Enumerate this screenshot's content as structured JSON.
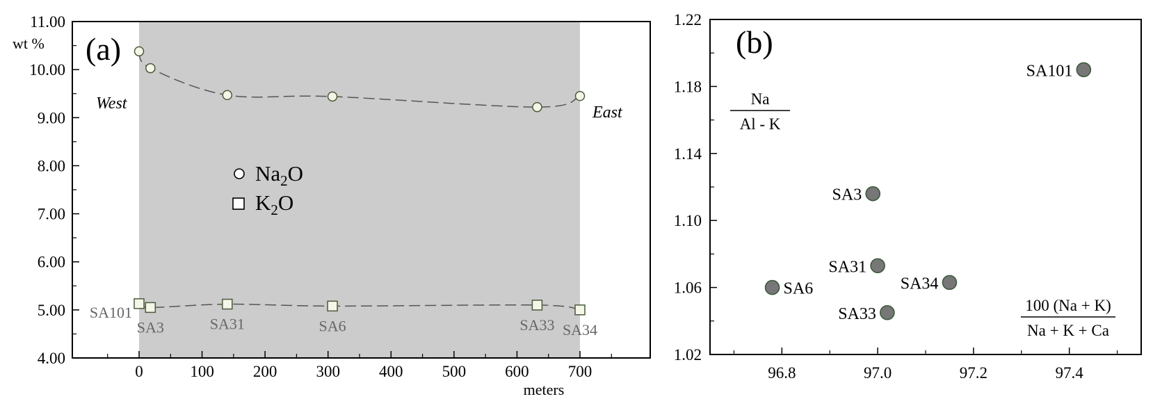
{
  "chart_data": [
    {
      "panel": "(a)",
      "type": "scatter",
      "xlabel": "meters",
      "ylabel": "wt %",
      "xlim": [
        -100,
        800
      ],
      "ylim": [
        4.0,
        11.0
      ],
      "x_ticks": [
        "0",
        "100",
        "200",
        "300",
        "400",
        "500",
        "600",
        "700"
      ],
      "y_ticks": [
        "4.00",
        "5.00",
        "6.00",
        "7.00",
        "8.00",
        "9.00",
        "10.00",
        "11.00"
      ],
      "shaded_region": [
        0,
        700
      ],
      "left_label": "West",
      "right_label": "East",
      "legend": {
        "na2o": {
          "base": "Na",
          "sub": "2",
          "tail": "O"
        },
        "k2o": {
          "base": "K",
          "sub": "2",
          "tail": "O"
        }
      },
      "series": [
        {
          "name": "Na2O",
          "marker": "circle",
          "points": [
            {
              "x": 0,
              "y": 10.38
            },
            {
              "x": 18,
              "y": 10.03
            },
            {
              "x": 140,
              "y": 9.47
            },
            {
              "x": 307,
              "y": 9.44
            },
            {
              "x": 632,
              "y": 9.22
            },
            {
              "x": 700,
              "y": 9.45
            }
          ]
        },
        {
          "name": "K2O",
          "marker": "square",
          "points": [
            {
              "x": 0,
              "y": 5.13,
              "label": "SA101"
            },
            {
              "x": 18,
              "y": 5.05,
              "label": "SA3"
            },
            {
              "x": 140,
              "y": 5.12,
              "label": "SA31"
            },
            {
              "x": 307,
              "y": 5.08,
              "label": "SA6"
            },
            {
              "x": 632,
              "y": 5.1,
              "label": "SA33"
            },
            {
              "x": 700,
              "y": 5.0,
              "label": "SA34"
            }
          ]
        }
      ]
    },
    {
      "panel": "(b)",
      "type": "scatter",
      "xlim": [
        96.65,
        97.55
      ],
      "ylim": [
        1.02,
        1.22
      ],
      "x_ticks": [
        "96.8",
        "97.0",
        "97.2",
        "97.4"
      ],
      "y_ticks": [
        "1.02",
        "1.06",
        "1.10",
        "1.14",
        "1.18",
        "1.22"
      ],
      "ylabel": {
        "numerator": "Na",
        "denominator": "Al - K"
      },
      "xlabel": {
        "numerator": "100 (Na + K)",
        "denominator": "Na + K + Ca"
      },
      "points": [
        {
          "label": "SA101",
          "x": 97.43,
          "y": 1.19
        },
        {
          "label": "SA3",
          "x": 96.99,
          "y": 1.116
        },
        {
          "label": "SA31",
          "x": 97.0,
          "y": 1.073
        },
        {
          "label": "SA34",
          "x": 97.15,
          "y": 1.063
        },
        {
          "label": "SA6",
          "x": 96.78,
          "y": 1.06
        },
        {
          "label": "SA33",
          "x": 97.02,
          "y": 1.045
        }
      ]
    }
  ],
  "colors": {
    "shade": "#cccccc",
    "na_marker_fill": "#f4f6e8",
    "marker_stroke": "#4a5a3a",
    "point_fill": "#777777",
    "point_stroke": "#3c5a3c",
    "curve": "#555555",
    "sample_label": "#666666"
  }
}
